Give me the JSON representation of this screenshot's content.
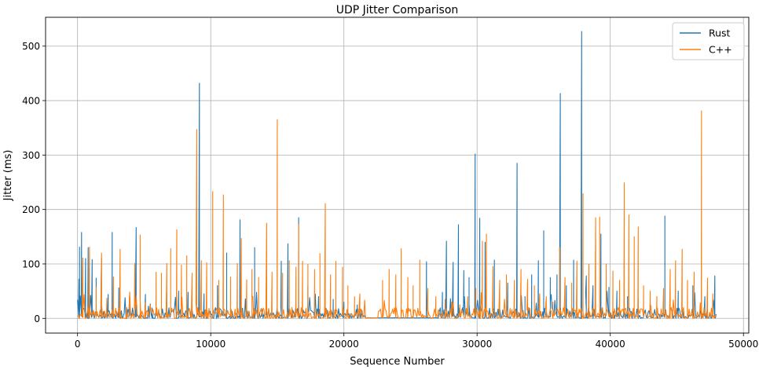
{
  "chart_data": {
    "type": "line",
    "title": "UDP Jitter Comparison",
    "xlabel": "Sequence Number",
    "ylabel": "Jitter (ms)",
    "xlim": [
      -2400,
      50400
    ],
    "ylim": [
      -27,
      553
    ],
    "xticks": [
      0,
      10000,
      20000,
      30000,
      40000,
      50000
    ],
    "xtick_labels": [
      "0",
      "10000",
      "20000",
      "30000",
      "40000",
      "50000"
    ],
    "yticks": [
      0,
      100,
      200,
      300,
      400,
      500
    ],
    "ytick_labels": [
      "0",
      "100",
      "200",
      "300",
      "400",
      "500"
    ],
    "grid": true,
    "legend_position": "top-right",
    "x_extent": [
      0,
      48000
    ],
    "baseline_range": [
      0,
      20
    ],
    "gaps": [
      {
        "series": "Rust",
        "x": [
          21600,
          27100
        ]
      },
      {
        "series": "C++",
        "x": [
          21600,
          22600
        ]
      }
    ],
    "series": [
      {
        "name": "Rust",
        "color": "#1f77b4",
        "spikes": [
          [
            100,
            72
          ],
          [
            150,
            131
          ],
          [
            300,
            158
          ],
          [
            600,
            110
          ],
          [
            800,
            130
          ],
          [
            1100,
            108
          ],
          [
            1400,
            74
          ],
          [
            1800,
            111
          ],
          [
            2300,
            44
          ],
          [
            2600,
            158
          ],
          [
            3100,
            56
          ],
          [
            3900,
            40
          ],
          [
            4400,
            167
          ],
          [
            5100,
            44
          ],
          [
            5600,
            19
          ],
          [
            6700,
            47
          ],
          [
            7600,
            50
          ],
          [
            8300,
            48
          ],
          [
            9150,
            432
          ],
          [
            9500,
            45
          ],
          [
            10500,
            60
          ],
          [
            11200,
            120
          ],
          [
            12200,
            181
          ],
          [
            13300,
            130
          ],
          [
            14200,
            90
          ],
          [
            15300,
            105
          ],
          [
            15800,
            137
          ],
          [
            16600,
            185
          ],
          [
            17300,
            60
          ],
          [
            18100,
            40
          ],
          [
            19200,
            35
          ],
          [
            20000,
            30
          ],
          [
            21000,
            25
          ],
          [
            26200,
            104
          ],
          [
            27400,
            48
          ],
          [
            27700,
            142
          ],
          [
            28200,
            103
          ],
          [
            28600,
            172
          ],
          [
            29000,
            88
          ],
          [
            29400,
            75
          ],
          [
            29850,
            302
          ],
          [
            30200,
            184
          ],
          [
            30600,
            140
          ],
          [
            31300,
            107
          ],
          [
            32300,
            65
          ],
          [
            33000,
            285
          ],
          [
            33600,
            40
          ],
          [
            34100,
            80
          ],
          [
            34600,
            106
          ],
          [
            35000,
            161
          ],
          [
            35500,
            75
          ],
          [
            36000,
            80
          ],
          [
            36250,
            413
          ],
          [
            36700,
            60
          ],
          [
            37250,
            107
          ],
          [
            37850,
            527
          ],
          [
            38200,
            78
          ],
          [
            38700,
            60
          ],
          [
            39300,
            155
          ],
          [
            39900,
            57
          ],
          [
            40500,
            50
          ],
          [
            41300,
            40
          ],
          [
            42100,
            35
          ],
          [
            43000,
            30
          ],
          [
            44100,
            188
          ],
          [
            45100,
            50
          ],
          [
            46200,
            60
          ],
          [
            47100,
            40
          ],
          [
            47850,
            78
          ]
        ]
      },
      {
        "name": "C++",
        "color": "#ff7f0e",
        "spikes": [
          [
            400,
            111
          ],
          [
            900,
            131
          ],
          [
            1400,
            57
          ],
          [
            1800,
            120
          ],
          [
            2200,
            37
          ],
          [
            2700,
            76
          ],
          [
            3200,
            127
          ],
          [
            3700,
            20
          ],
          [
            4300,
            101
          ],
          [
            4700,
            153
          ],
          [
            5100,
            29
          ],
          [
            5900,
            85
          ],
          [
            6300,
            83
          ],
          [
            6700,
            101
          ],
          [
            7000,
            128
          ],
          [
            7450,
            163
          ],
          [
            7800,
            98
          ],
          [
            8200,
            115
          ],
          [
            8600,
            83
          ],
          [
            8950,
            347
          ],
          [
            9300,
            106
          ],
          [
            9700,
            102
          ],
          [
            10150,
            233
          ],
          [
            10600,
            70
          ],
          [
            10950,
            227
          ],
          [
            11500,
            76
          ],
          [
            12000,
            101
          ],
          [
            12300,
            147
          ],
          [
            12700,
            71
          ],
          [
            13100,
            90
          ],
          [
            13600,
            75
          ],
          [
            14200,
            175
          ],
          [
            14600,
            85
          ],
          [
            15000,
            365
          ],
          [
            15400,
            83
          ],
          [
            15900,
            106
          ],
          [
            16400,
            94
          ],
          [
            16600,
            173
          ],
          [
            16900,
            105
          ],
          [
            17300,
            99
          ],
          [
            17800,
            90
          ],
          [
            18200,
            119
          ],
          [
            18600,
            211
          ],
          [
            19000,
            80
          ],
          [
            19400,
            105
          ],
          [
            19900,
            94
          ],
          [
            20300,
            60
          ],
          [
            20800,
            40
          ],
          [
            21200,
            45
          ],
          [
            22900,
            70
          ],
          [
            23400,
            90
          ],
          [
            23900,
            80
          ],
          [
            24300,
            128
          ],
          [
            24800,
            75
          ],
          [
            25200,
            60
          ],
          [
            25700,
            107
          ],
          [
            26300,
            55
          ],
          [
            26900,
            40
          ],
          [
            27600,
            35
          ],
          [
            28100,
            30
          ],
          [
            28700,
            25
          ],
          [
            29300,
            40
          ],
          [
            29900,
            55
          ],
          [
            30400,
            142
          ],
          [
            30700,
            155
          ],
          [
            31200,
            95
          ],
          [
            31700,
            70
          ],
          [
            32200,
            80
          ],
          [
            32800,
            70
          ],
          [
            33300,
            90
          ],
          [
            33800,
            72
          ],
          [
            34300,
            60
          ],
          [
            34700,
            45
          ],
          [
            35200,
            40
          ],
          [
            35700,
            30
          ],
          [
            36200,
            130
          ],
          [
            36600,
            75
          ],
          [
            37100,
            65
          ],
          [
            37500,
            105
          ],
          [
            37950,
            229
          ],
          [
            38400,
            100
          ],
          [
            38900,
            185
          ],
          [
            39200,
            186
          ],
          [
            39700,
            100
          ],
          [
            40200,
            87
          ],
          [
            40700,
            70
          ],
          [
            41050,
            249
          ],
          [
            41400,
            190
          ],
          [
            41800,
            150
          ],
          [
            42100,
            168
          ],
          [
            42500,
            60
          ],
          [
            43000,
            50
          ],
          [
            43500,
            40
          ],
          [
            44000,
            55
          ],
          [
            44500,
            90
          ],
          [
            44900,
            106
          ],
          [
            45400,
            127
          ],
          [
            45800,
            70
          ],
          [
            46300,
            85
          ],
          [
            46850,
            381
          ],
          [
            47300,
            74
          ],
          [
            47700,
            45
          ]
        ]
      }
    ]
  }
}
